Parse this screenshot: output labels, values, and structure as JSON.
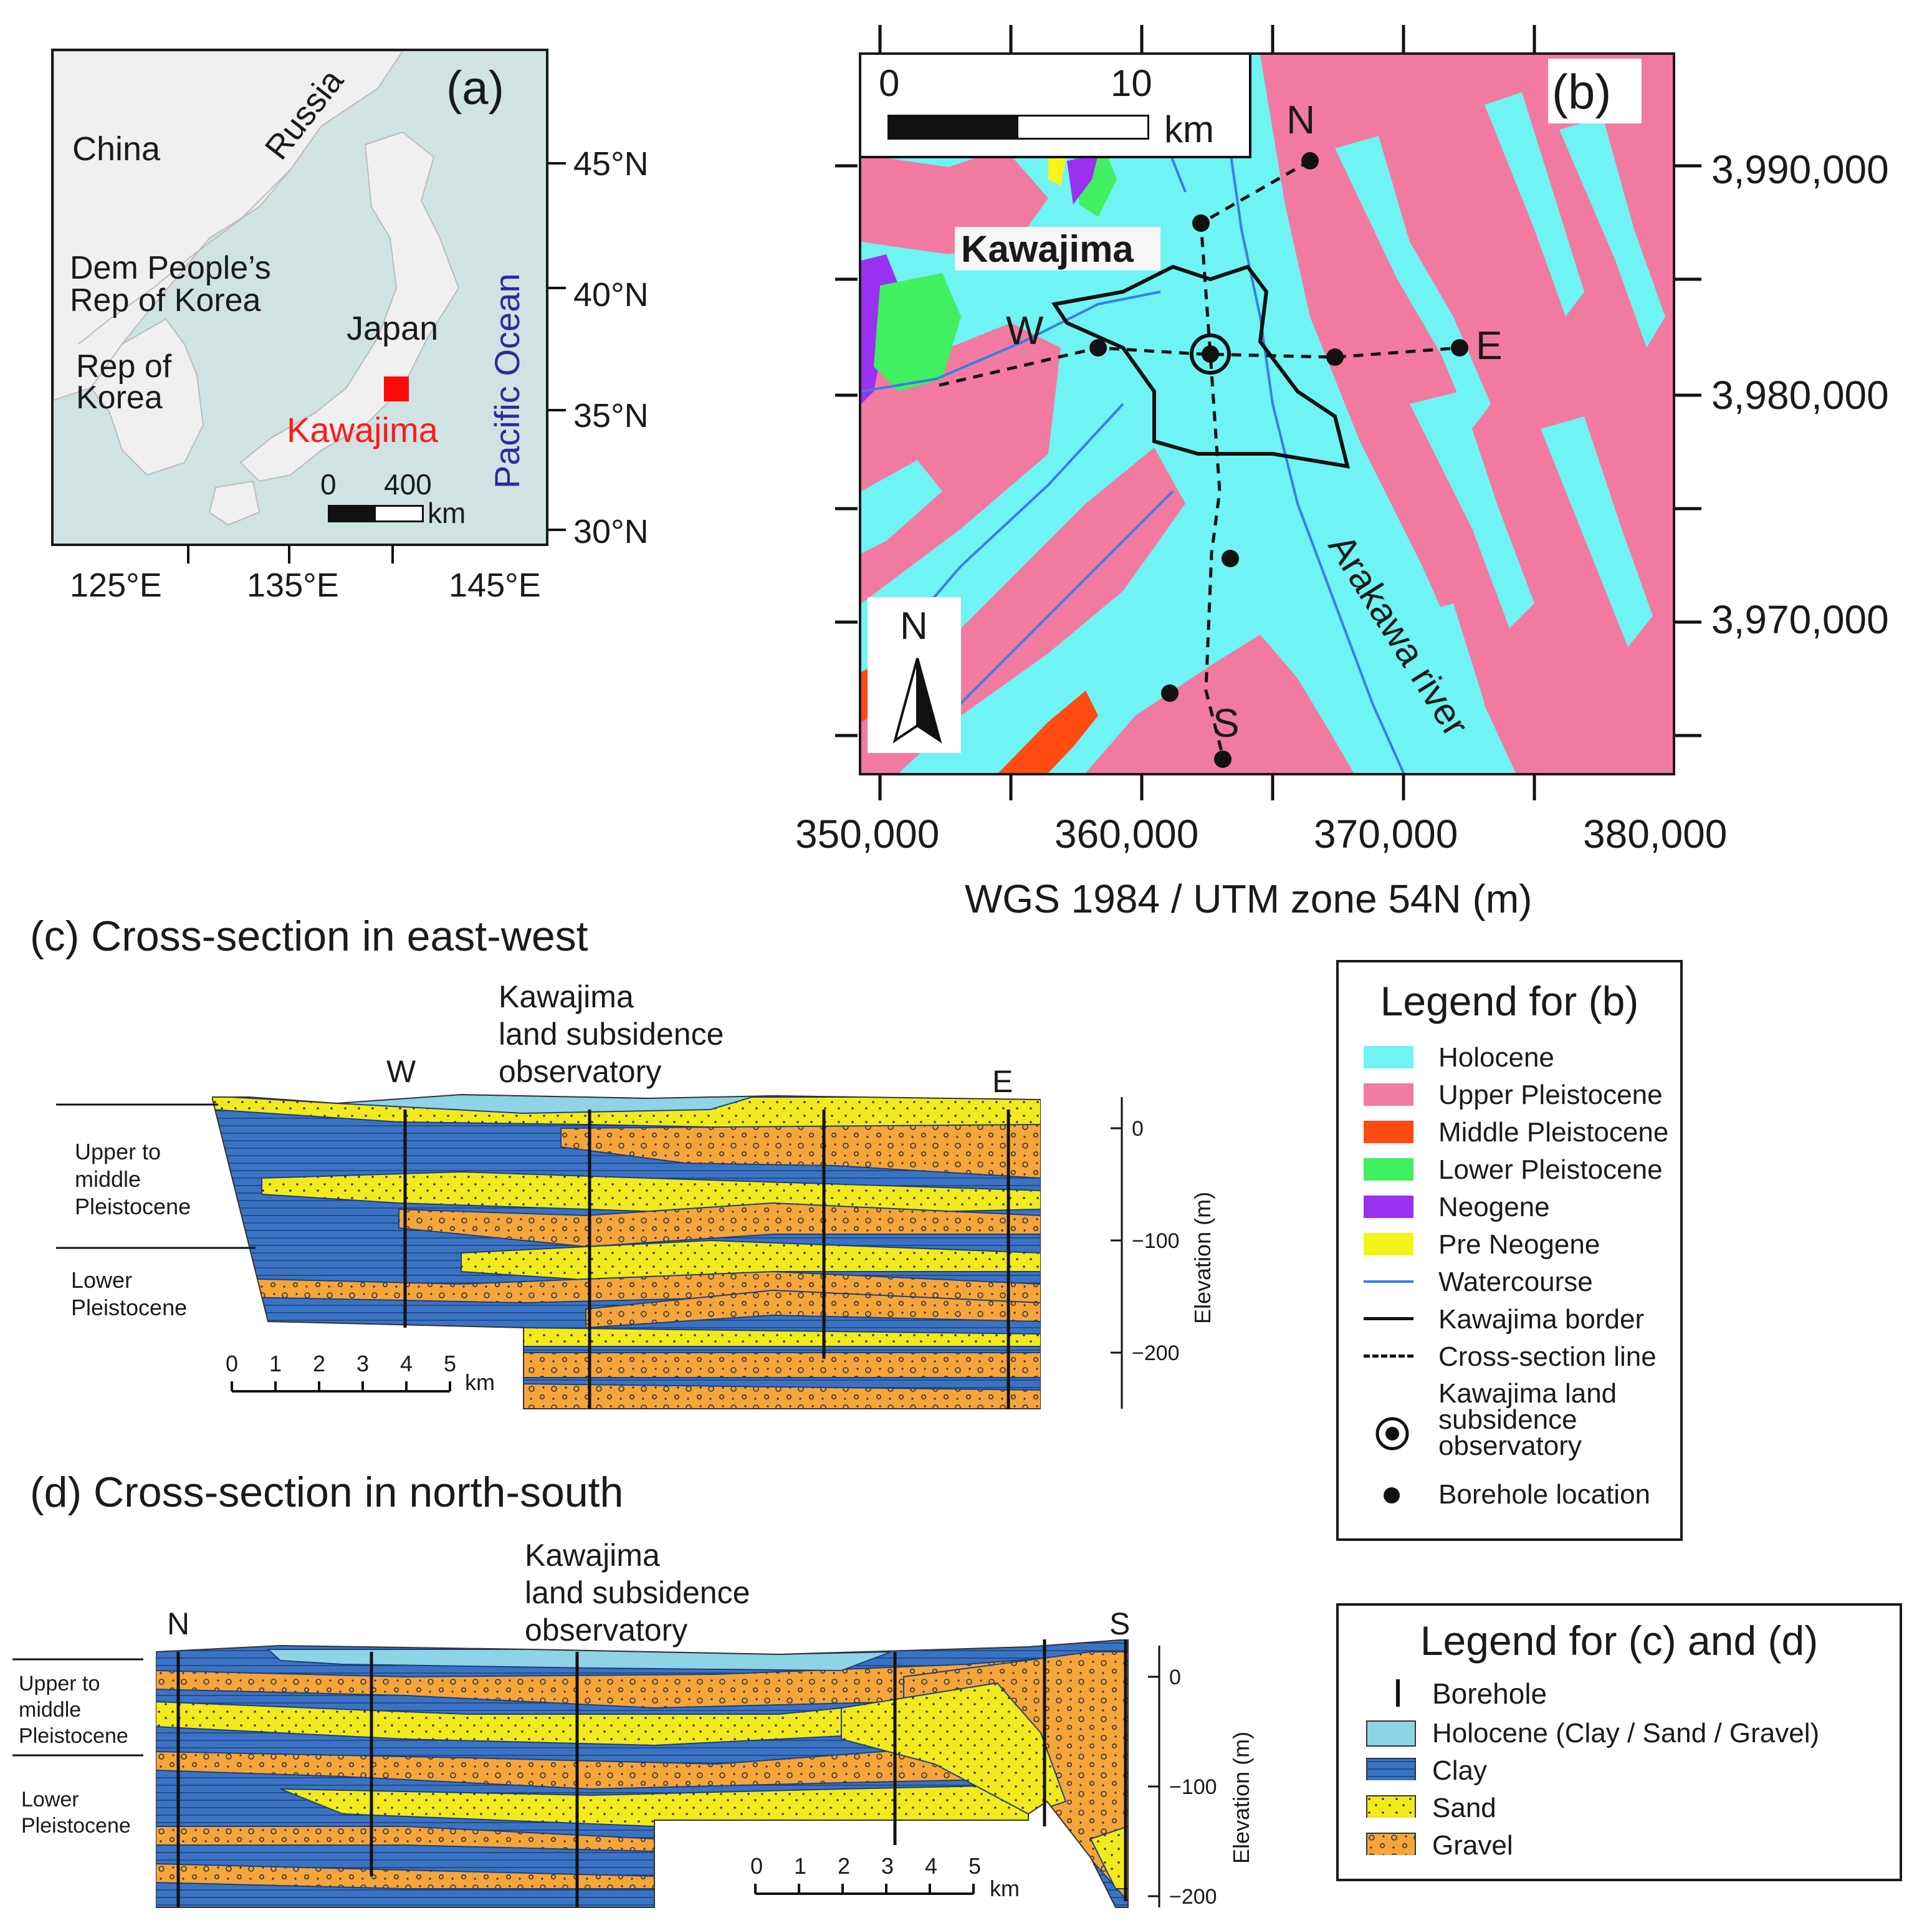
{
  "colors": {
    "sea": "#cfe3e3",
    "land": "#f0f0f0",
    "holocene": "#6ff3f3",
    "upper_pleistocene": "#f27aa0",
    "middle_pleistocene": "#ff4a12",
    "lower_pleistocene": "#40f060",
    "neogene": "#9a30f0",
    "pre_neogene": "#f5f51a",
    "watercourse": "#3a7ee0",
    "xs_holocene": "#8ed3e6",
    "xs_clay": "#3b73c4",
    "xs_sand": "#f2ea1c",
    "xs_gravel": "#f5a53a"
  },
  "panel_a": {
    "tag": "(a)",
    "countries": [
      "China",
      "Russia",
      "Dem People’s",
      "Rep of Korea",
      "Rep of",
      "Korea",
      "Japan"
    ],
    "site": "Kawajima",
    "ocean": "Pacific Ocean",
    "lat_ticks": [
      "45°N",
      "40°N",
      "35°N",
      "30°N"
    ],
    "lon_ticks": [
      "125°E",
      "135°E",
      "145°E"
    ],
    "scalebar": {
      "start": "0",
      "end": "400",
      "unit": "km"
    }
  },
  "panel_b": {
    "tag": "(b)",
    "site": "Kawajima",
    "river": "Arakawa river",
    "points": [
      "N",
      "W",
      "E",
      "S"
    ],
    "north_arrow": "N",
    "scalebar": {
      "start": "0",
      "end": "10",
      "unit": "km"
    },
    "y_ticks": [
      "3,990,000",
      "3,980,000",
      "3,970,000"
    ],
    "x_ticks": [
      "350,000",
      "360,000",
      "370,000",
      "380,000"
    ],
    "x_label": "WGS 1984 / UTM zone 54N (m)"
  },
  "panel_c": {
    "title": "(c) Cross-section in east-west",
    "observatory": [
      "Kawajima",
      "land subsidence",
      "observatory"
    ],
    "ends": [
      "W",
      "E"
    ],
    "units": [
      "Upper to",
      "middle",
      "Pleistocene",
      "Lower",
      "Pleistocene"
    ],
    "scale_ticks": [
      "0",
      "1",
      "2",
      "3",
      "4",
      "5"
    ],
    "scale_unit": "km",
    "elev_ticks": [
      "0",
      "−100",
      "−200"
    ],
    "elev_label": "Elevation (m)"
  },
  "panel_d": {
    "title": "(d) Cross-section in north-south",
    "observatory": [
      "Kawajima",
      "land subsidence",
      "observatory"
    ],
    "ends": [
      "N",
      "S"
    ],
    "units": [
      "Upper to",
      "middle",
      "Pleistocene",
      "Lower",
      "Pleistocene"
    ],
    "scale_ticks": [
      "0",
      "1",
      "2",
      "3",
      "4",
      "5"
    ],
    "scale_unit": "km",
    "elev_ticks": [
      "0",
      "−100",
      "−200"
    ],
    "elev_label": "Elevation (m)"
  },
  "legend_b": {
    "title": "Legend for (b)",
    "items": [
      "Holocene",
      "Upper Pleistocene",
      "Middle Pleistocene",
      "Lower Pleistocene",
      "Neogene",
      "Pre Neogene",
      "Watercourse",
      "Kawajima border",
      "Cross-section line"
    ],
    "observatory": [
      "Kawajima land",
      "subsidence",
      "observatory"
    ],
    "borehole": "Borehole location"
  },
  "legend_cd": {
    "title": "Legend for (c) and (d)",
    "items": [
      "Borehole",
      "Holocene (Clay / Sand / Gravel)",
      "Clay",
      "Sand",
      "Gravel"
    ]
  }
}
